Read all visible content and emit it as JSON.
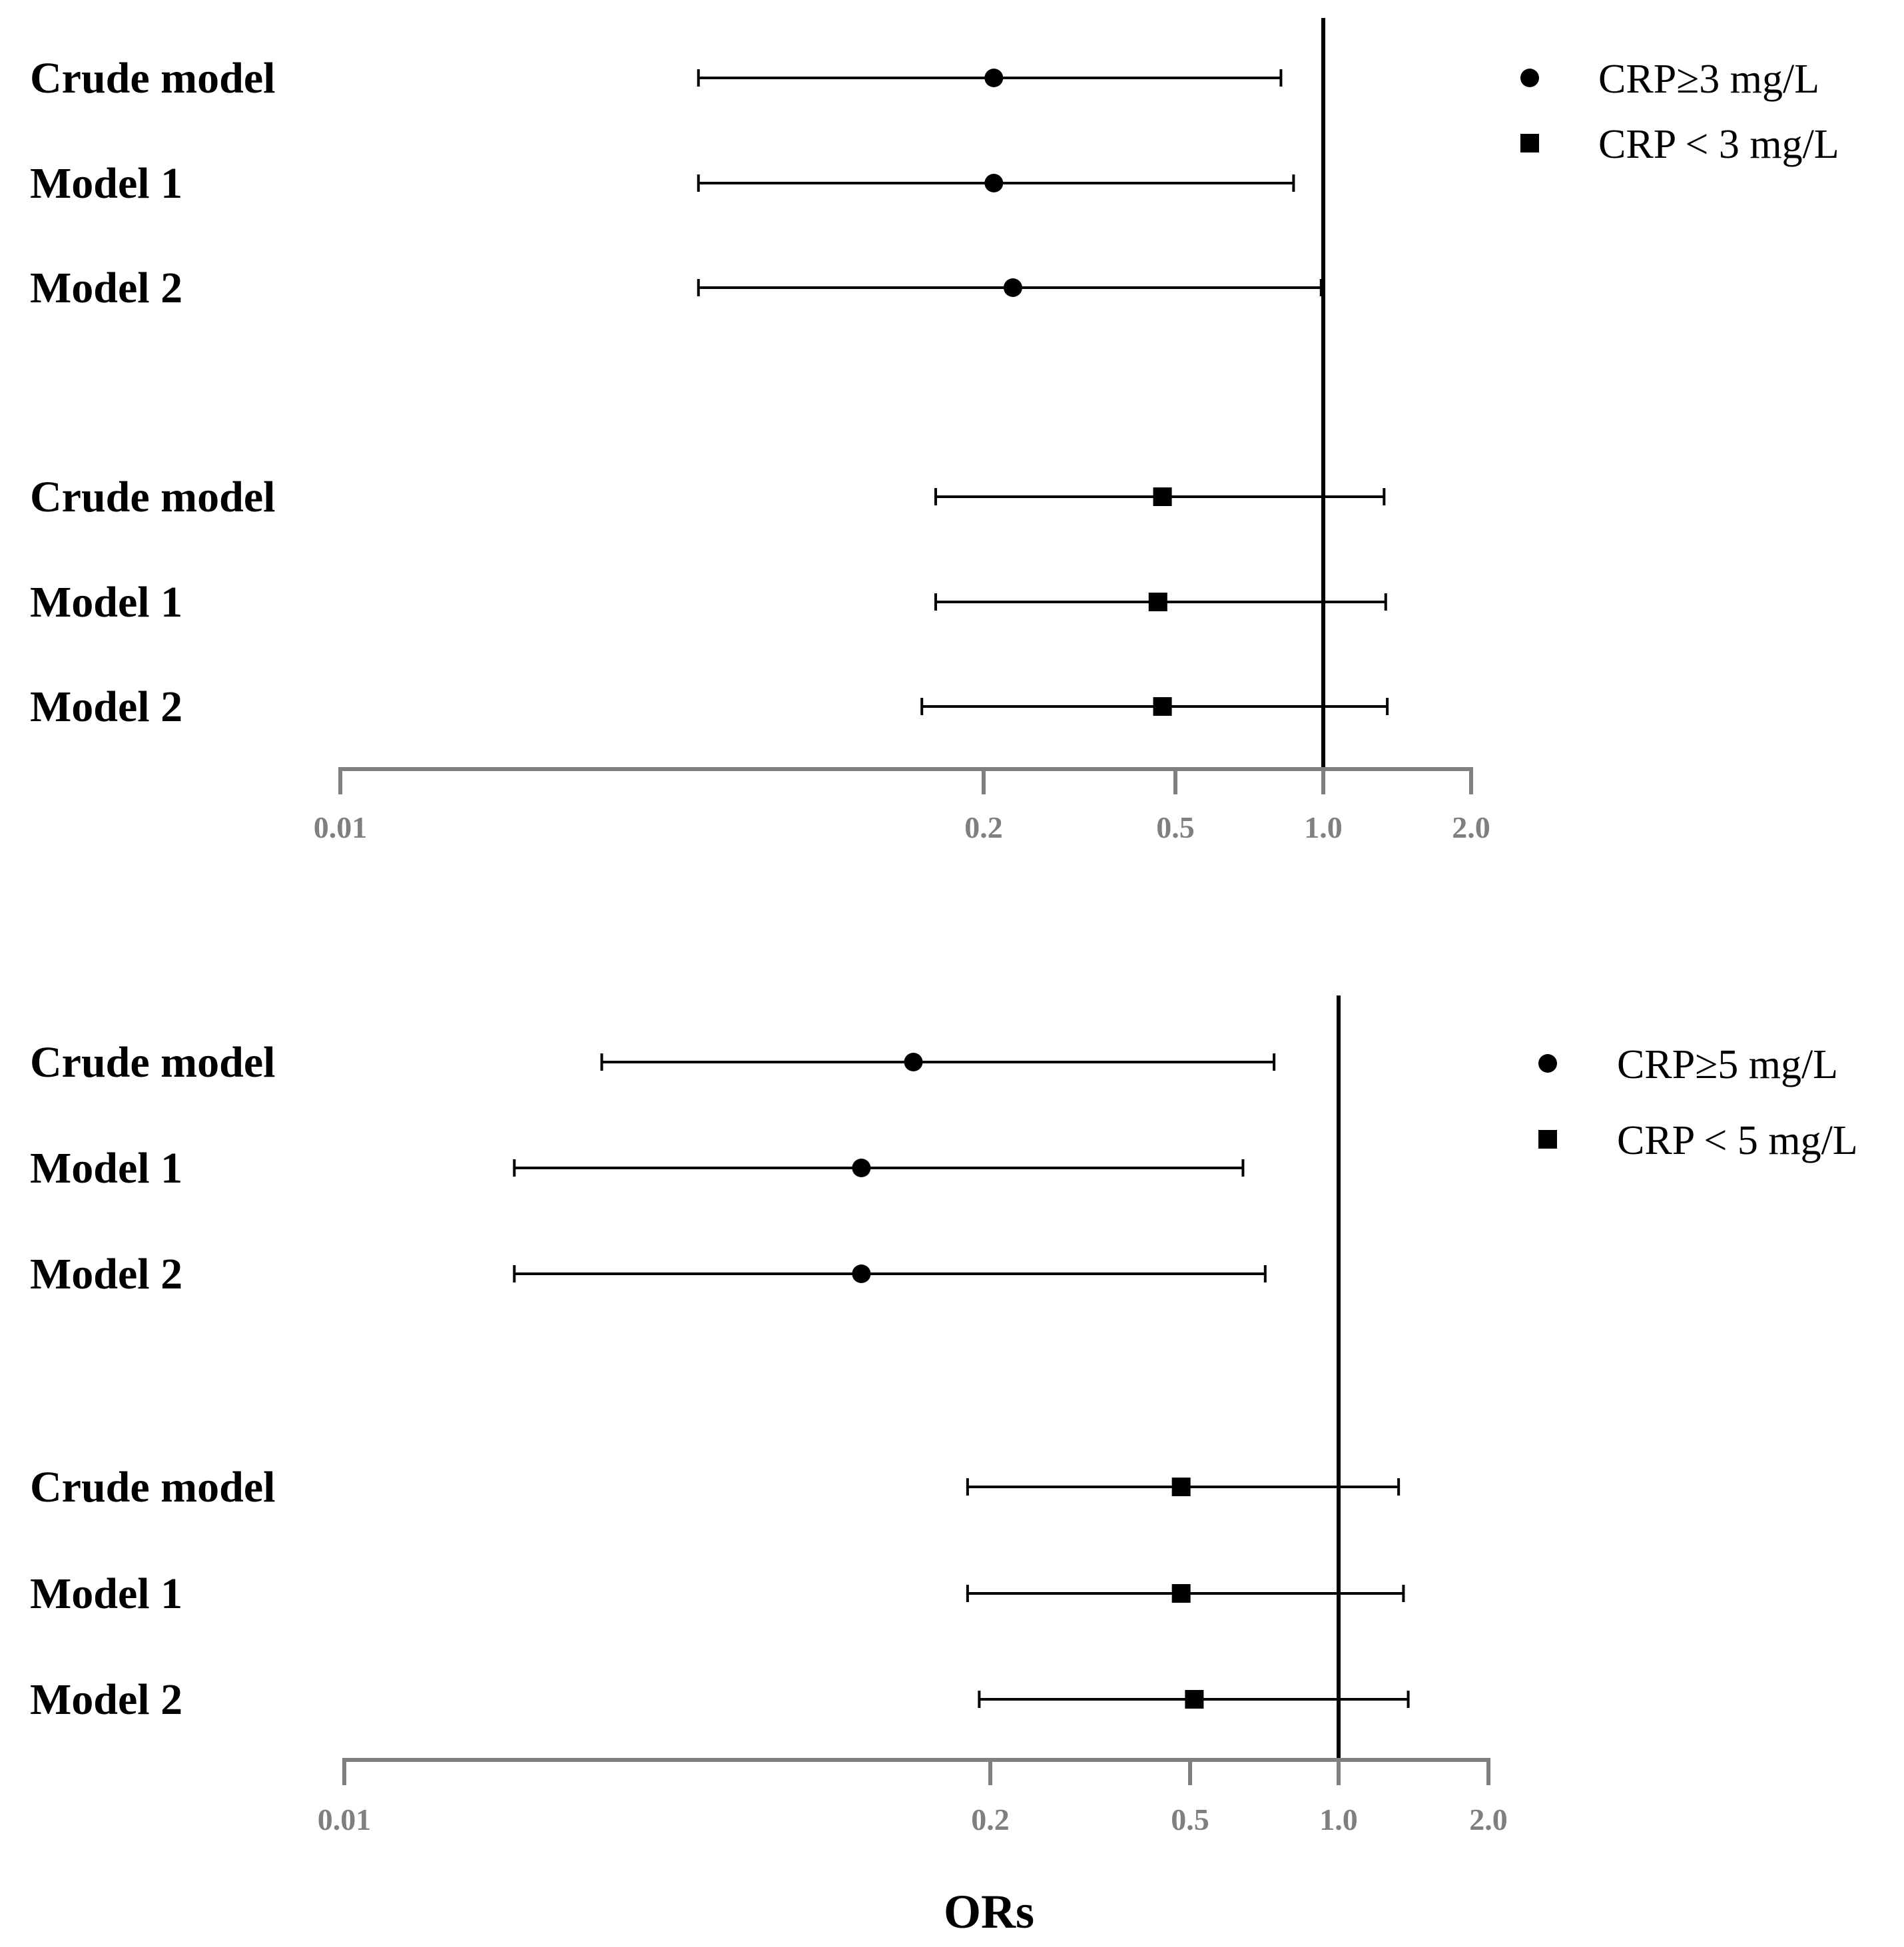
{
  "chart_data": [
    {
      "type": "forest",
      "scale": "log",
      "ticks": [
        "0.01",
        "0.2",
        "0.5",
        "1.0",
        "2.0"
      ],
      "tick_values": [
        0.01,
        0.2,
        0.5,
        1.0,
        2.0
      ],
      "xlim": [
        0.01,
        2.0
      ],
      "reference_line": 1.0,
      "legend": [
        {
          "marker": "circle",
          "label": "CRP≥3 mg/L"
        },
        {
          "marker": "square",
          "label": "CRP < 3 mg/L"
        }
      ],
      "rows": [
        {
          "label": "Crude model",
          "group": "CRP≥3 mg/L",
          "marker": "circle",
          "or": 0.21,
          "lower": 0.053,
          "upper": 0.82
        },
        {
          "label": "Model 1",
          "group": "CRP≥3 mg/L",
          "marker": "circle",
          "or": 0.21,
          "lower": 0.053,
          "upper": 0.87
        },
        {
          "label": "Model 2",
          "group": "CRP≥3 mg/L",
          "marker": "circle",
          "or": 0.23,
          "lower": 0.053,
          "upper": 0.99
        },
        {
          "label": "Crude model",
          "group": "CRP < 3 mg/L",
          "marker": "square",
          "or": 0.47,
          "lower": 0.16,
          "upper": 1.33
        },
        {
          "label": "Model 1",
          "group": "CRP < 3 mg/L",
          "marker": "square",
          "or": 0.46,
          "lower": 0.16,
          "upper": 1.34
        },
        {
          "label": "Model 2",
          "group": "CRP < 3 mg/L",
          "marker": "square",
          "or": 0.47,
          "lower": 0.15,
          "upper": 1.35
        }
      ]
    },
    {
      "type": "forest",
      "scale": "log",
      "ticks": [
        "0.01",
        "0.2",
        "0.5",
        "1.0",
        "2.0"
      ],
      "tick_values": [
        0.01,
        0.2,
        0.5,
        1.0,
        2.0
      ],
      "xlim": [
        0.01,
        2.0
      ],
      "reference_line": 1.0,
      "xlabel": "ORs",
      "legend": [
        {
          "marker": "circle",
          "label": "CRP≥5 mg/L"
        },
        {
          "marker": "square",
          "label": "CRP < 5 mg/L"
        }
      ],
      "rows": [
        {
          "label": "Crude model",
          "group": "CRP≥5 mg/L",
          "marker": "circle",
          "or": 0.14,
          "lower": 0.033,
          "upper": 0.74
        },
        {
          "label": "Model 1",
          "group": "CRP≥5 mg/L",
          "marker": "circle",
          "or": 0.11,
          "lower": 0.022,
          "upper": 0.64
        },
        {
          "label": "Model 2",
          "group": "CRP≥5 mg/L",
          "marker": "circle",
          "or": 0.11,
          "lower": 0.022,
          "upper": 0.71
        },
        {
          "label": "Crude model",
          "group": "CRP < 5 mg/L",
          "marker": "square",
          "or": 0.48,
          "lower": 0.18,
          "upper": 1.32
        },
        {
          "label": "Model 1",
          "group": "CRP < 5 mg/L",
          "marker": "square",
          "or": 0.48,
          "lower": 0.18,
          "upper": 1.35
        },
        {
          "label": "Model 2",
          "group": "CRP < 5 mg/L",
          "marker": "square",
          "or": 0.51,
          "lower": 0.19,
          "upper": 1.38
        }
      ]
    }
  ]
}
